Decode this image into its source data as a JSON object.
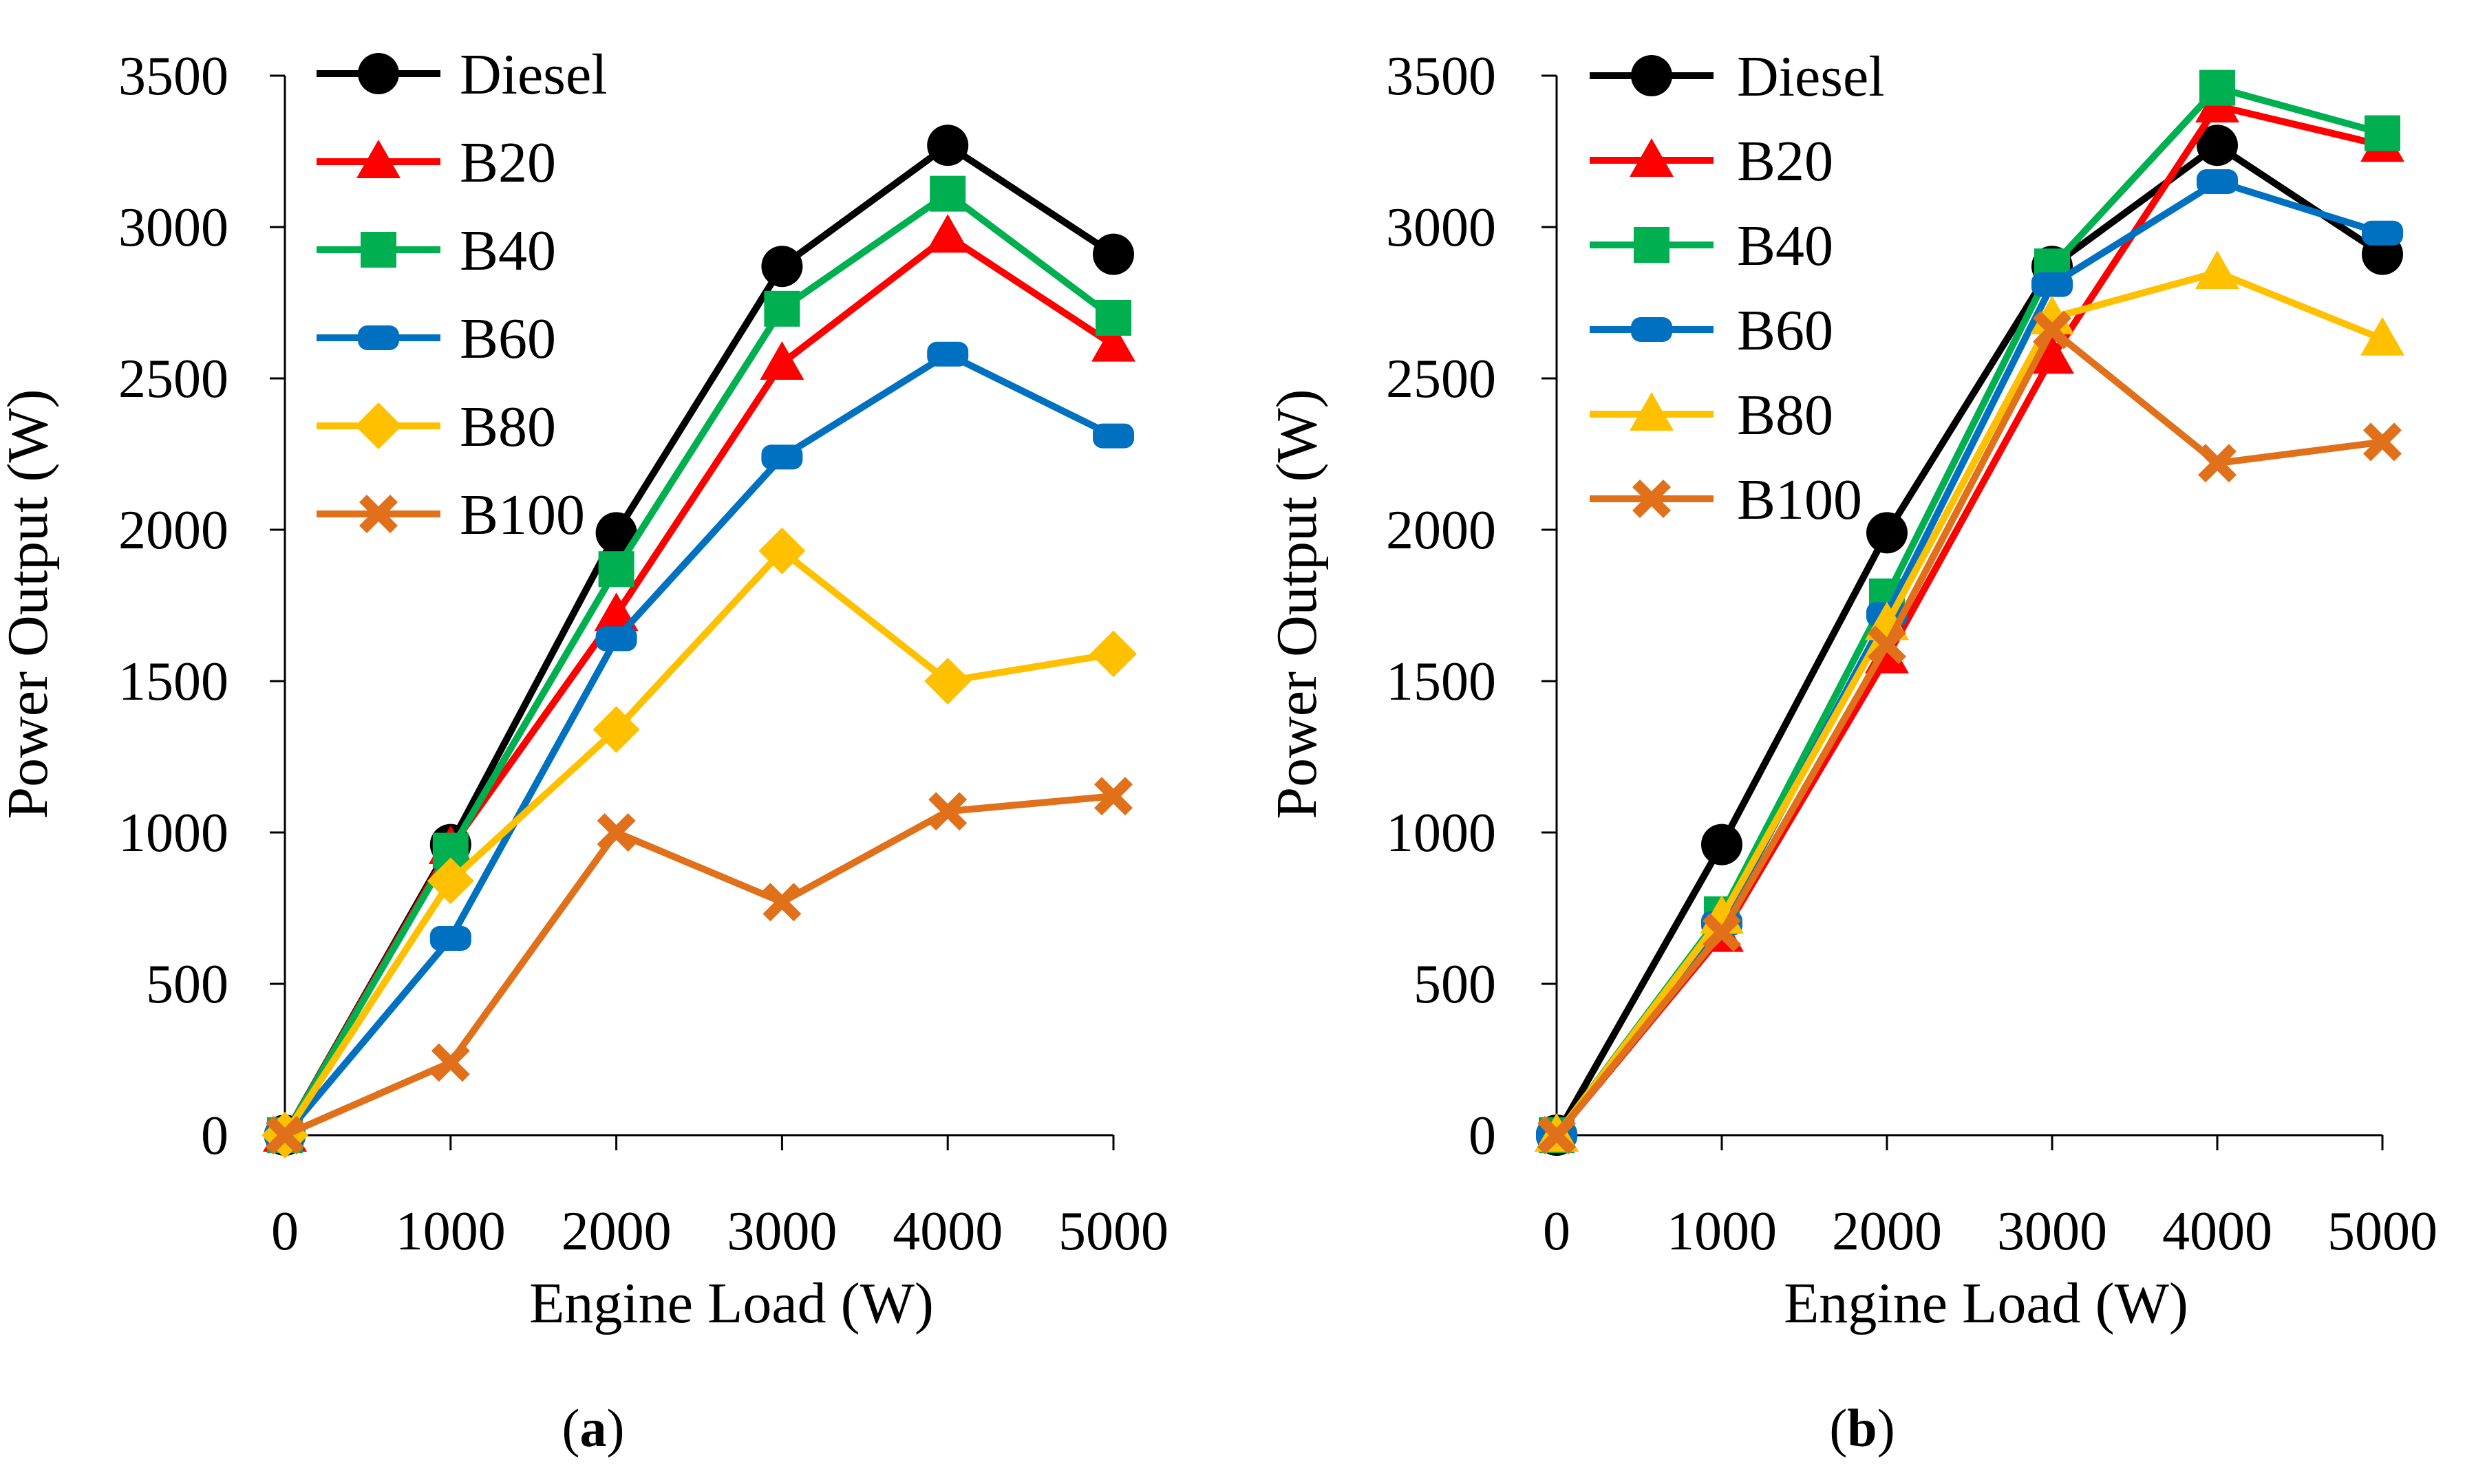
{
  "chart_data": [
    {
      "type": "line",
      "panel_label": "a",
      "xlabel": "Engine Load (W)",
      "ylabel": "Power Output (W)",
      "x": [
        0,
        1000,
        2000,
        3000,
        4000,
        5000
      ],
      "xlim": [
        0,
        5000
      ],
      "ylim": [
        0,
        3500
      ],
      "xticks": [
        "0",
        "1000",
        "2000",
        "3000",
        "4000",
        "5000"
      ],
      "yticks": [
        "0",
        "500",
        "1000",
        "1500",
        "2000",
        "2500",
        "3000",
        "3500"
      ],
      "grid": false,
      "legend_position": "top-left",
      "series": [
        {
          "name": "Diesel",
          "color": "#000000",
          "marker": "circle",
          "values": [
            0,
            960,
            1990,
            2870,
            3270,
            2910
          ]
        },
        {
          "name": "B20",
          "color": "#ff0000",
          "marker": "triangle",
          "values": [
            0,
            950,
            1720,
            2550,
            2970,
            2610
          ]
        },
        {
          "name": "B40",
          "color": "#00b050",
          "marker": "square",
          "values": [
            0,
            940,
            1870,
            2730,
            3110,
            2700
          ]
        },
        {
          "name": "B60",
          "color": "#0070c0",
          "marker": "rounded-rect",
          "values": [
            0,
            650,
            1640,
            2240,
            2580,
            2310
          ]
        },
        {
          "name": "B80",
          "color": "#ffc000",
          "marker": "diamond",
          "values": [
            0,
            840,
            1340,
            1930,
            1500,
            1590
          ]
        },
        {
          "name": "B100",
          "color": "#e0701a",
          "marker": "cross",
          "values": [
            0,
            240,
            1000,
            770,
            1070,
            1120
          ]
        }
      ]
    },
    {
      "type": "line",
      "panel_label": "b",
      "xlabel": "Engine Load (W)",
      "ylabel": "Power Output (W)",
      "x": [
        0,
        1000,
        2000,
        3000,
        4000,
        5000
      ],
      "xlim": [
        0,
        5000
      ],
      "ylim": [
        0,
        3500
      ],
      "xticks": [
        "0",
        "1000",
        "2000",
        "3000",
        "4000",
        "5000"
      ],
      "yticks": [
        "0",
        "500",
        "1000",
        "1500",
        "2000",
        "2500",
        "3000",
        "3500"
      ],
      "grid": false,
      "legend_position": "top-left",
      "series": [
        {
          "name": "Diesel",
          "color": "#000000",
          "marker": "circle",
          "values": [
            0,
            960,
            1990,
            2870,
            3270,
            2910
          ]
        },
        {
          "name": "B20",
          "color": "#ff0000",
          "marker": "triangle",
          "values": [
            0,
            660,
            1580,
            2570,
            3400,
            3270
          ]
        },
        {
          "name": "B40",
          "color": "#00b050",
          "marker": "square",
          "values": [
            0,
            730,
            1780,
            2870,
            3460,
            3310
          ]
        },
        {
          "name": "B60",
          "color": "#0070c0",
          "marker": "rounded-rect",
          "values": [
            0,
            700,
            1720,
            2810,
            3150,
            2980
          ]
        },
        {
          "name": "B80",
          "color": "#ffc000",
          "marker": "triangle",
          "values": [
            0,
            720,
            1690,
            2700,
            2850,
            2630
          ]
        },
        {
          "name": "B100",
          "color": "#e0701a",
          "marker": "cross",
          "values": [
            0,
            670,
            1620,
            2660,
            2220,
            2290
          ]
        }
      ]
    }
  ]
}
